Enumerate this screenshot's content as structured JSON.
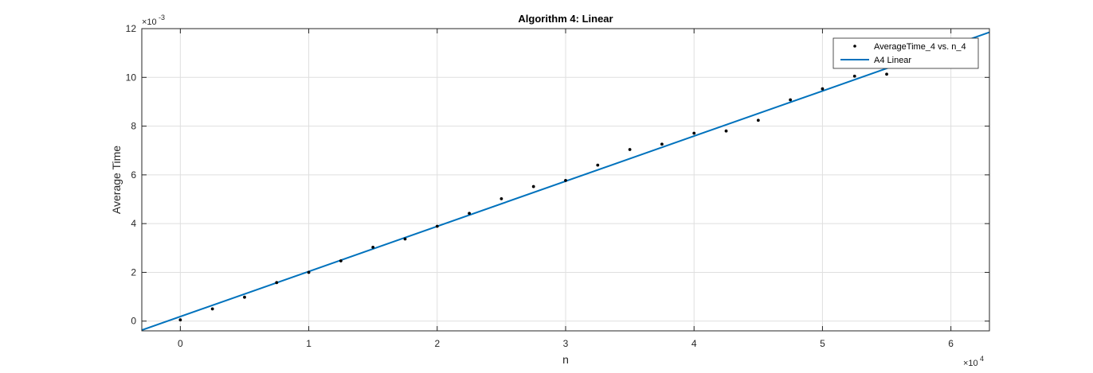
{
  "chart_data": {
    "type": "scatter",
    "title": "Algorithm 4: Linear",
    "xlabel": "n",
    "ylabel": "Average Time",
    "x_multiplier": "×10",
    "x_multiplier_exp": "4",
    "y_multiplier": "×10",
    "y_multiplier_exp": "-3",
    "xlim": [
      -3000,
      63000
    ],
    "ylim": [
      -0.0004,
      0.012
    ],
    "x_ticks": [
      0,
      10000,
      20000,
      30000,
      40000,
      50000,
      60000
    ],
    "x_tick_labels": [
      "0",
      "1",
      "2",
      "3",
      "4",
      "5",
      "6"
    ],
    "y_ticks": [
      0,
      0.002,
      0.004,
      0.006,
      0.008,
      0.01,
      0.012
    ],
    "y_tick_labels": [
      "0",
      "2",
      "4",
      "6",
      "8",
      "10",
      "12"
    ],
    "grid": true,
    "legend_position": "top-right",
    "series": [
      {
        "name": "AverageTime_4 vs. n_4",
        "kind": "points",
        "color": "#000000",
        "x": [
          0,
          2500,
          5000,
          7500,
          10000,
          12500,
          15000,
          17500,
          20000,
          22500,
          25000,
          27500,
          30000,
          32500,
          35000,
          37500,
          40000,
          42500,
          45000,
          47500,
          50000,
          52500,
          55000
        ],
        "y": [
          5e-05,
          0.0005,
          0.00098,
          0.00158,
          0.002,
          0.00247,
          0.00303,
          0.00337,
          0.00389,
          0.00442,
          0.00502,
          0.00552,
          0.00577,
          0.0064,
          0.00704,
          0.00726,
          0.00771,
          0.0078,
          0.00824,
          0.00908,
          0.00953,
          0.01005,
          0.01013
        ]
      },
      {
        "name": "A4 Linear",
        "kind": "line",
        "color": "#0072bd",
        "x": [
          -3000,
          63000
        ],
        "y": [
          -0.00037,
          0.01185
        ]
      }
    ]
  }
}
